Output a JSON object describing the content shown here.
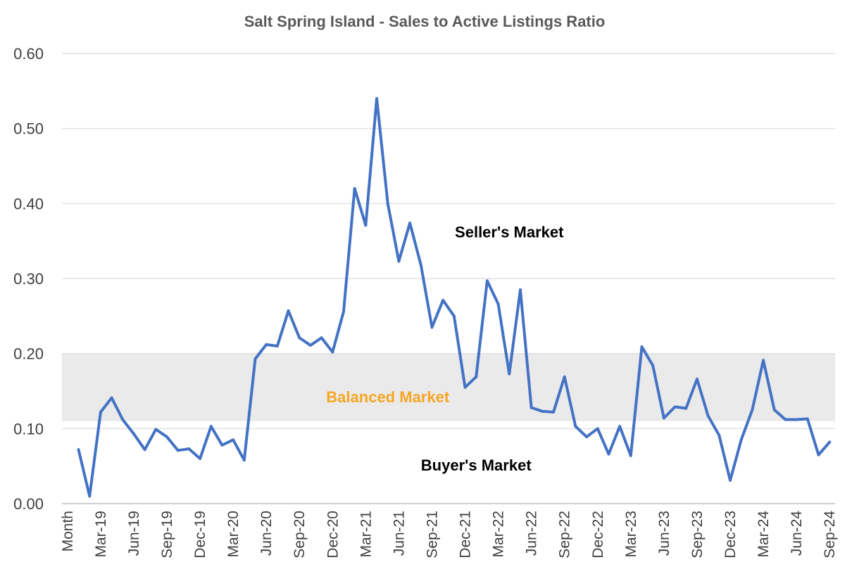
{
  "chart_data": {
    "type": "line",
    "title": "Salt Spring Island - Sales to Active Listings Ratio",
    "xlabel": "",
    "ylabel": "",
    "ylim": [
      0,
      0.6
    ],
    "yticks": [
      "0.00",
      "0.10",
      "0.20",
      "0.30",
      "0.40",
      "0.50",
      "0.60"
    ],
    "grid": true,
    "x": [
      "Month",
      "Jan-19",
      "Feb-19",
      "Mar-19",
      "Apr-19",
      "May-19",
      "Jun-19",
      "Jul-19",
      "Aug-19",
      "Sep-19",
      "Oct-19",
      "Nov-19",
      "Dec-19",
      "Jan-20",
      "Feb-20",
      "Mar-20",
      "Apr-20",
      "May-20",
      "Jun-20",
      "Jul-20",
      "Aug-20",
      "Sep-20",
      "Oct-20",
      "Nov-20",
      "Dec-20",
      "Jan-21",
      "Feb-21",
      "Mar-21",
      "Apr-21",
      "May-21",
      "Jun-21",
      "Jul-21",
      "Aug-21",
      "Sep-21",
      "Oct-21",
      "Nov-21",
      "Dec-21",
      "Jan-22",
      "Feb-22",
      "Mar-22",
      "Apr-22",
      "May-22",
      "Jun-22",
      "Jul-22",
      "Aug-22",
      "Sep-22",
      "Oct-22",
      "Nov-22",
      "Dec-22",
      "Jan-23",
      "Feb-23",
      "Mar-23",
      "Apr-23",
      "May-23",
      "Jun-23",
      "Jul-23",
      "Aug-23",
      "Sep-23",
      "Oct-23",
      "Nov-23",
      "Dec-23",
      "Jan-24",
      "Feb-24",
      "Mar-24",
      "Apr-24",
      "May-24",
      "Jun-24",
      "Jul-24",
      "Aug-24",
      "Sep-24"
    ],
    "xtick_labels": [
      "Month",
      "Mar-19",
      "Jun-19",
      "Sep-19",
      "Dec-19",
      "Mar-20",
      "Jun-20",
      "Sep-20",
      "Dec-20",
      "Mar-21",
      "Jun-21",
      "Sep-21",
      "Dec-21",
      "Mar-22",
      "Jun-22",
      "Sep-22",
      "Dec-22",
      "Mar-23",
      "Jun-23",
      "Sep-23",
      "Dec-23",
      "Mar-24",
      "Jun-24",
      "Sep-24"
    ],
    "series": [
      {
        "values": [
          null,
          0.072,
          0.01,
          0.122,
          0.141,
          0.112,
          0.093,
          0.072,
          0.099,
          0.089,
          0.071,
          0.073,
          0.06,
          0.103,
          0.078,
          0.085,
          0.058,
          0.193,
          0.212,
          0.21,
          0.257,
          0.221,
          0.211,
          0.221,
          0.202,
          0.256,
          0.42,
          0.371,
          0.54,
          0.4,
          0.323,
          0.374,
          0.318,
          0.235,
          0.271,
          0.25,
          0.155,
          0.169,
          0.297,
          0.266,
          0.173,
          0.285,
          0.128,
          0.123,
          0.122,
          0.169,
          0.103,
          0.089,
          0.1,
          0.066,
          0.103,
          0.064,
          0.209,
          0.184,
          0.114,
          0.129,
          0.127,
          0.166,
          0.117,
          0.091,
          0.031,
          0.085,
          0.125,
          0.191,
          0.125,
          0.112,
          0.112,
          0.113,
          0.065,
          0.082
        ]
      }
    ],
    "balanced_band": [
      0.11,
      0.2
    ],
    "annotations": [
      {
        "text": "Seller's Market",
        "x": "Apr-22",
        "y": 0.355,
        "color": "#000000"
      },
      {
        "text": "Balanced Market",
        "x": "May-21",
        "y": 0.135,
        "color": "#F5A623"
      },
      {
        "text": "Buyer's Market",
        "x": "Jan-22",
        "y": 0.044,
        "color": "#000000"
      }
    ],
    "colors": {
      "line": "#4472C4",
      "band": "#EAEAEA",
      "grid": "#D9D9D9"
    }
  }
}
